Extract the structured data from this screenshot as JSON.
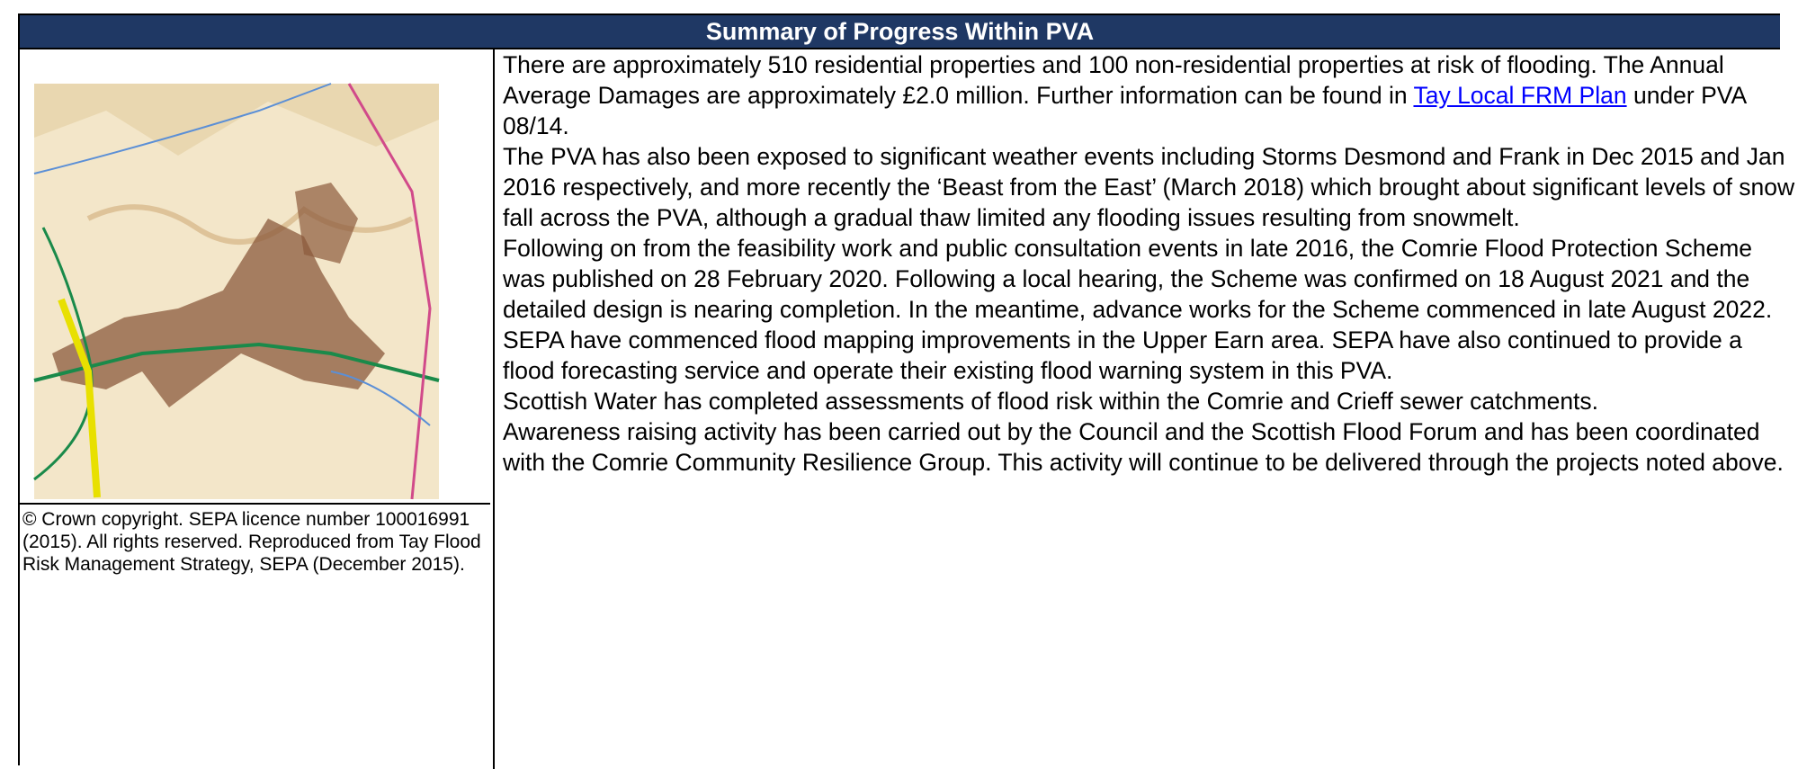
{
  "header": {
    "title": "Summary of Progress Within PVA"
  },
  "map": {
    "caption": "© Crown copyright. SEPA licence number 100016991 (2015). All rights reserved. Reproduced from Tay Flood Risk Management Strategy, SEPA (December 2015)."
  },
  "intro": {
    "before": "There are approximately 510 residential properties and 100 non-residential properties at risk of flooding. The Annual Average Damages are approximately £2.0 million. Further information can be found in ",
    "link": "Tay Local FRM Plan",
    "after": " under PVA 08/14."
  },
  "paragraphs": [
    "The PVA has also been exposed to significant weather events including Storms Desmond and Frank in Dec 2015 and Jan 2016 respectively, and more recently the ‘Beast from the East’ (March 2018) which brought about significant levels of snow fall across the PVA, although a gradual thaw limited any flooding issues resulting from snowmelt.",
    "Following on from the feasibility work and public consultation events in late 2016, the Comrie Flood Protection Scheme was published on 28 February 2020. Following a local hearing, the Scheme was confirmed on 18 August 2021 and the detailed design is nearing completion. In the meantime, advance works for the Scheme commenced in late August 2022.",
    "SEPA have commenced flood mapping improvements in the Upper Earn area. SEPA have also continued to provide a flood forecasting service and operate their existing flood warning system in this PVA.",
    "Scottish Water has completed assessments of flood risk within the Comrie and Crieff sewer catchments.",
    "Awareness raising activity has been carried out by the Council and the Scottish Flood Forum and has been coordinated with the Comrie Community Resilience Group. This activity will continue to be delivered through the projects noted above."
  ]
}
